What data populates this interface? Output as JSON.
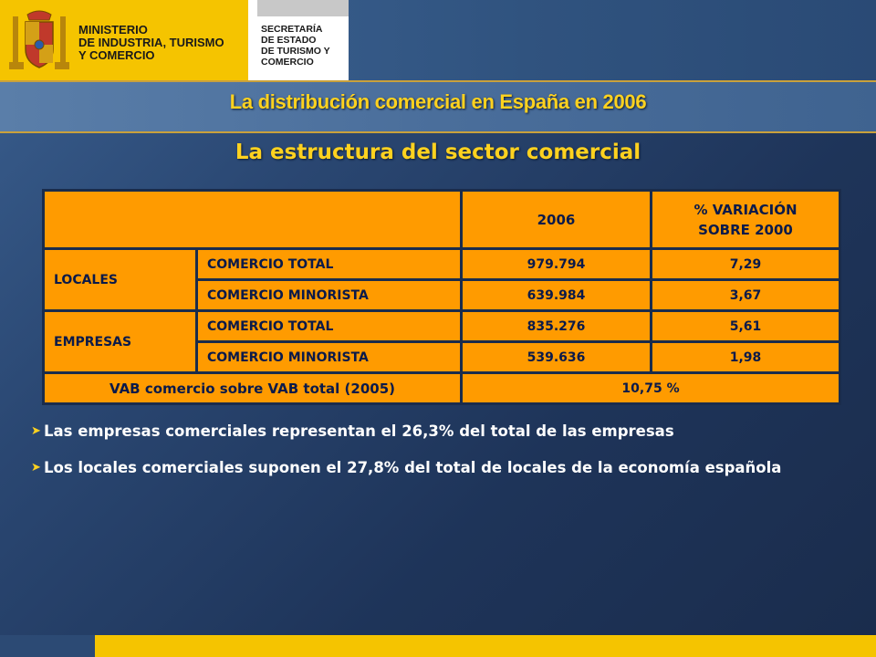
{
  "header": {
    "ministerio_lines": [
      "MINISTERIO",
      "DE INDUSTRIA, TURISMO",
      "Y COMERCIO"
    ],
    "secretaria_lines": [
      "SECRETARÍA",
      "DE ESTADO",
      "DE TURISMO Y",
      "COMERCIO"
    ]
  },
  "title": "La distribución comercial en España en 2006",
  "subtitle": "La estructura del sector comercial",
  "table": {
    "col_2006": "2006",
    "col_variacion_line1": "% VARIACIÓN",
    "col_variacion_line2": "SOBRE 2000",
    "groups": [
      {
        "label": "LOCALES",
        "rows": [
          {
            "name": "COMERCIO TOTAL",
            "value_2006": "979.794",
            "variacion": "7,29"
          },
          {
            "name": "COMERCIO MINORISTA",
            "value_2006": "639.984",
            "variacion": "3,67"
          }
        ]
      },
      {
        "label": "EMPRESAS",
        "rows": [
          {
            "name": "COMERCIO TOTAL",
            "value_2006": "835.276",
            "variacion": "5,61"
          },
          {
            "name": "COMERCIO MINORISTA",
            "value_2006": "539.636",
            "variacion": "1,98"
          }
        ]
      }
    ],
    "footer_label": "VAB comercio sobre VAB total (2005)",
    "footer_value": "10,75 %"
  },
  "bullets": [
    "Las empresas comerciales representan el 26,3% del total de las empresas",
    "Los locales comerciales suponen el 27,8% del total de locales de la economía española"
  ],
  "colors": {
    "accent_yellow": "#ffd21f",
    "table_orange": "#ff9b00",
    "background_navy": "#1e3459"
  }
}
